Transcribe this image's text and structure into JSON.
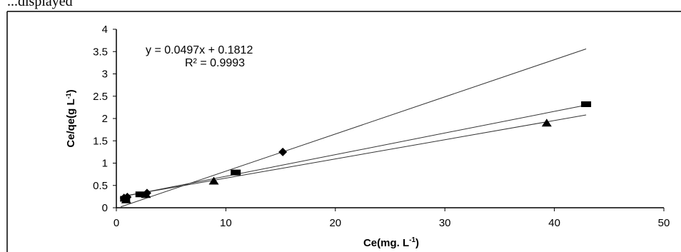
{
  "page": {
    "top_text": "...displayed"
  },
  "chart_data": {
    "type": "scatter",
    "title": "",
    "xlabel": "Ce(mg. L",
    "xlabel_sup": "-1",
    "xlabel_suffix": ")",
    "ylabel": "Ce/qe(g L",
    "ylabel_sup": "-1",
    "ylabel_suffix": ")",
    "xlim": [
      0,
      50
    ],
    "ylim": [
      0,
      4
    ],
    "xticks": [
      0,
      10,
      20,
      30,
      40,
      50
    ],
    "yticks": [
      0,
      0.5,
      1,
      1.5,
      2,
      2.5,
      3,
      3.5,
      4
    ],
    "xtick_labels": [
      "0",
      "10",
      "20",
      "30",
      "40",
      "50"
    ],
    "ytick_labels": [
      "0",
      "0.5",
      "1",
      "1.5",
      "2",
      "2.5",
      "3",
      "3.5",
      "4"
    ],
    "grid": false,
    "legend": "none",
    "equation": "y = 0.0497x + 0.1812",
    "r_squared": "R² = 0.9993",
    "series": [
      {
        "marker": "diamond",
        "color": "#000000",
        "points": [
          [
            0.7,
            0.22
          ],
          [
            1.0,
            0.24
          ],
          [
            2.8,
            0.33
          ],
          [
            15.2,
            1.25
          ]
        ]
      },
      {
        "marker": "square",
        "color": "#000000",
        "points": [
          [
            0.8,
            0.2
          ],
          [
            2.2,
            0.3
          ],
          [
            10.9,
            0.79
          ],
          [
            42.9,
            2.32
          ]
        ]
      },
      {
        "marker": "triangle",
        "color": "#000000",
        "points": [
          [
            0.9,
            0.18
          ],
          [
            2.7,
            0.3
          ],
          [
            8.9,
            0.6
          ],
          [
            39.3,
            1.9
          ]
        ]
      }
    ],
    "trendlines": [
      {
        "x": [
          0.4,
          42.9
        ],
        "y": [
          0.02,
          3.56
        ]
      },
      {
        "x": [
          0.4,
          42.9
        ],
        "y": [
          0.24,
          2.3
        ]
      },
      {
        "x": [
          0.4,
          42.9
        ],
        "y": [
          0.25,
          2.08
        ]
      }
    ]
  }
}
